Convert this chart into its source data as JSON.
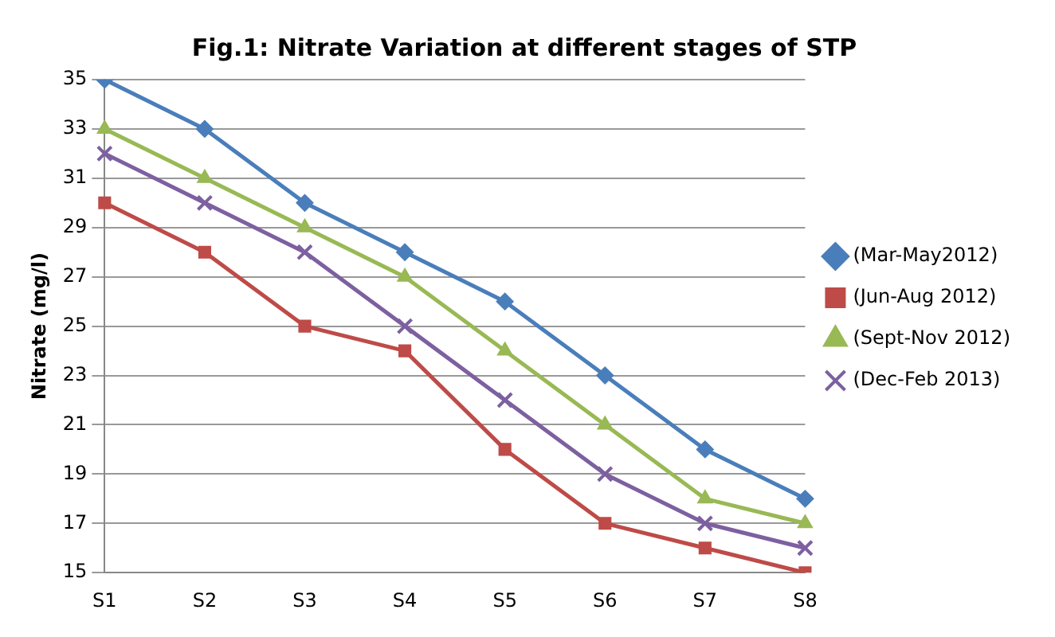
{
  "chart_data": {
    "type": "line",
    "title": "Fig.1: Nitrate Variation at different stages of STP",
    "ylabel": "Nitrate (mg/l)",
    "categories": [
      "S1",
      "S2",
      "S3",
      "S4",
      "S5",
      "S6",
      "S7",
      "S8"
    ],
    "series": [
      {
        "name": "(Mar-May2012)",
        "color": "#4a7ebb",
        "marker": "diamond",
        "values": [
          35,
          33,
          30,
          28,
          26,
          23,
          20,
          18
        ]
      },
      {
        "name": "(Jun-Aug 2012)",
        "color": "#be4b48",
        "marker": "square",
        "values": [
          30,
          28,
          25,
          24,
          20,
          17,
          16,
          15
        ]
      },
      {
        "name": "(Sept-Nov 2012)",
        "color": "#98b954",
        "marker": "triangle",
        "values": [
          33,
          31,
          29,
          27,
          24,
          21,
          18,
          17
        ]
      },
      {
        "name": "(Dec-Feb 2013)",
        "color": "#7d60a0",
        "marker": "cross",
        "values": [
          32,
          30,
          28,
          25,
          22,
          19,
          17,
          16
        ]
      }
    ],
    "ylim": [
      15,
      35
    ],
    "yticks": [
      15,
      17,
      19,
      21,
      23,
      25,
      27,
      29,
      31,
      33,
      35
    ],
    "grid": "y",
    "legend": "right"
  }
}
